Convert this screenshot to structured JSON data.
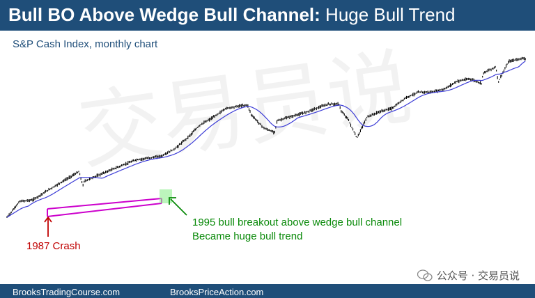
{
  "header": {
    "title_bold": "Bull BO Above Wedge Bull Channel:",
    "title_rest": "Huge Bull Trend",
    "subtitle": "S&P Cash Index, monthly chart"
  },
  "annotations": {
    "breakout_line1": "1995 bull breakout above wedge bull channel",
    "breakout_line2": "Became huge bull trend",
    "crash": "1987 Crash"
  },
  "watermark": {
    "wechat_label": "公众号 · 交易员说",
    "background_text": "交易员说"
  },
  "footer": {
    "left": "BrooksTradingCourse.com",
    "right": "BrooksPriceAction.com"
  },
  "colors": {
    "header_bg": "#1f4e79",
    "price_bars": "#000000",
    "moving_average": "#3b3bd6",
    "wedge_channel": "#cc00cc",
    "breakout_highlight": "#90ee90",
    "breakout_annotation": "#0a8a0a",
    "crash_annotation": "#c00000"
  },
  "chart_data": {
    "type": "line",
    "title": "",
    "series": [
      {
        "values_desc": "monthly S&P cash index closes (approximate, by year)",
        "x": [
          1982,
          1983,
          1984,
          1985,
          1986,
          1987.6,
          1987.9,
          1988,
          1990,
          1992,
          1994,
          1995,
          1996,
          1997,
          1998,
          1999,
          2000,
          2000.7,
          2001,
          2002,
          2002.8,
          2003,
          2004,
          2005,
          2006,
          2007,
          2007.8,
          2008,
          2008.5,
          2009.2,
          2010,
          2011,
          2012,
          2013,
          2014,
          2015,
          2016,
          2017,
          2018,
          2018.9,
          2019,
          2020,
          2020.2,
          2021,
          2022
        ],
        "values": [
          110,
          160,
          165,
          200,
          240,
          320,
          230,
          255,
          330,
          420,
          460,
          540,
          700,
          950,
          1130,
          1400,
          1480,
          1520,
          1200,
          880,
          800,
          1050,
          1150,
          1250,
          1400,
          1550,
          1550,
          1300,
          1100,
          700,
          1150,
          1300,
          1420,
          1800,
          2050,
          2050,
          2200,
          2650,
          2800,
          2500,
          3200,
          3700,
          2600,
          4200,
          4500
        ]
      }
    ]
  }
}
